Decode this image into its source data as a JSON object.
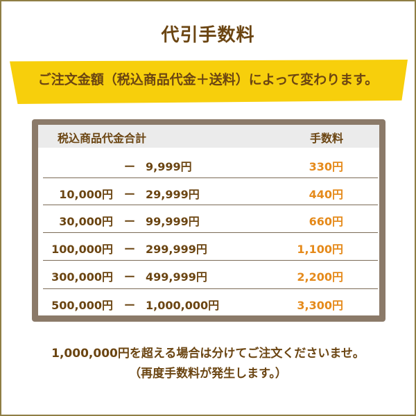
{
  "title": "代引手数料",
  "subtitle": "ご注文金額（税込商品代金＋送料）によって変わります。",
  "colors": {
    "text": "#6b4512",
    "band": "#f7cf0c",
    "fee": "#e58a1b",
    "frame": "#8b7a69",
    "header_bg": "#ebebeb",
    "border": "#8f7e45"
  },
  "table": {
    "headers": {
      "amount": "税込商品代金合計",
      "fee": "手数料"
    },
    "rows": [
      {
        "from": "",
        "dash": "ー",
        "to": "9,999円",
        "fee": "330円"
      },
      {
        "from": "10,000円",
        "dash": "ー",
        "to": "29,999円",
        "fee": "440円"
      },
      {
        "from": "30,000円",
        "dash": "ー",
        "to": "99,999円",
        "fee": "660円"
      },
      {
        "from": "100,000円",
        "dash": "ー",
        "to": "299,999円",
        "fee": "1,100円"
      },
      {
        "from": "300,000円",
        "dash": "ー",
        "to": "499,999円",
        "fee": "2,200円"
      },
      {
        "from": "500,000円",
        "dash": "ー",
        "to": "1,000,000円",
        "fee": "3,300円"
      }
    ]
  },
  "notes": [
    "1,000,000円を超える場合は分けてご注文くださいませ。",
    "（再度手数料が発生します。）"
  ]
}
